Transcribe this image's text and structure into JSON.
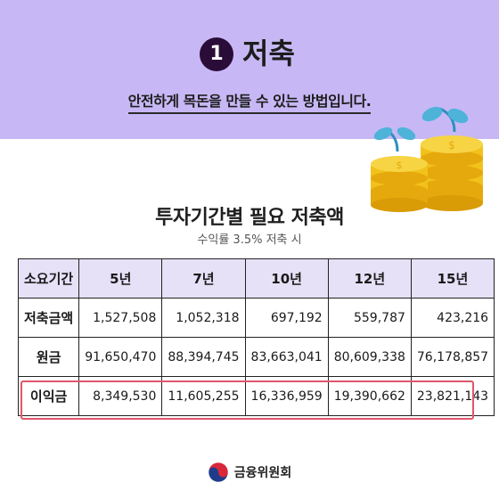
{
  "header": {
    "badge_number": "1",
    "title": "저축",
    "subtitle": "안전하게 목돈을 만들 수 있는 방법입니다."
  },
  "table": {
    "title": "투자기간별 필요 저축액",
    "caption": "수익률 3.5% 저축 시",
    "corner_label": "소요기간",
    "columns": [
      "5년",
      "7년",
      "10년",
      "12년",
      "15년"
    ],
    "rows": [
      {
        "label": "저축금액",
        "values": [
          "1,527,508",
          "1,052,318",
          "697,192",
          "559,787",
          "423,216"
        ]
      },
      {
        "label": "원금",
        "values": [
          "91,650,470",
          "88,394,745",
          "83,663,041",
          "80,609,338",
          "76,178,857"
        ]
      },
      {
        "label": "이익금",
        "values": [
          "8,349,530",
          "11,605,255",
          "16,336,959",
          "19,390,662",
          "23,821,143"
        ]
      }
    ]
  },
  "footer": {
    "organization": "금융위원회"
  },
  "colors": {
    "header_background": "#c7b8f5",
    "badge": "#2a0c38",
    "table_header": "#e6e1f7",
    "highlight_border": "#e0566b",
    "coin": "#f2c21b",
    "leaf": "#4fb3d9"
  },
  "icons": {
    "illustration": "coin-stacks-with-sprouts",
    "logo": "taegeuk-emblem"
  }
}
